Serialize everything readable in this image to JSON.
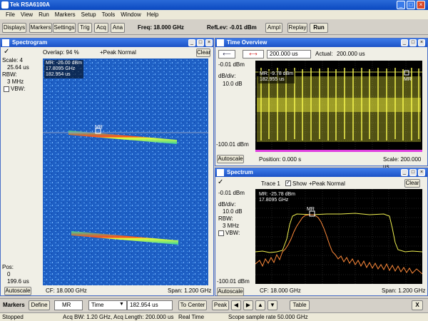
{
  "window_title": "Tek RSA6100A",
  "menu": [
    "File",
    "View",
    "Run",
    "Markers",
    "Setup",
    "Tools",
    "Window",
    "Help"
  ],
  "toolbar": {
    "buttons": [
      "Displays",
      "Markers",
      "Settings",
      "Trig",
      "Acq",
      "Ana"
    ],
    "freq": "Freq: 18.000 GHz",
    "reflev": "RefLev: -0.01 dBm",
    "ampl": "Ampl",
    "replay": "Replay",
    "run": "Run"
  },
  "spectrogram": {
    "title": "Spectrogram",
    "clear": "Clear",
    "overlap": "Overlap: 94 %",
    "trace": "+Peak Normal",
    "check": "✓",
    "scale_label": "Scale: 4",
    "scale_val": "25.64 us",
    "rbw_label": "RBW:",
    "rbw_val": "3 MHz",
    "vbw": "VBW:",
    "pos_label": "Pos:",
    "pos_val1": "0",
    "pos_val2": "199.6 us",
    "autoscale": "Autoscale",
    "cf": "CF: 18.000 GHz",
    "span": "Span: 1.200 GHz",
    "mr": [
      "MR: -26.00 dBm",
      "17.8095 GHz",
      "182.954 us"
    ],
    "marker": "MR"
  },
  "time_overview": {
    "title": "Time Overview",
    "time_val": "200.000 us",
    "actual": "Actual:",
    "actual_val": "200.000 us",
    "top": "-0.01 dBm",
    "div": "dB/div:",
    "div_val": "10.0 dB",
    "bottom": "-100.01 dBm",
    "autoscale": "Autoscale",
    "position": "Position: 0.000 s",
    "scale": "Scale: 200.000 us",
    "mr": [
      "MR: -9.78 dBm",
      "182.955 us"
    ],
    "marker": "MR"
  },
  "spectrum": {
    "title": "Spectrum",
    "check": "✓",
    "trace": "Trace 1",
    "show": "Show",
    "trace_mode": "+Peak Normal",
    "clear": "Clear",
    "top": "-0.01 dBm",
    "div": "dB/div:",
    "div_val": "10.0 dB",
    "rbw_label": "RBW:",
    "rbw_val": "3 MHz",
    "vbw": "VBW:",
    "bottom": "-100.01 dBm",
    "autoscale": "Autoscale",
    "cf": "CF: 18.000 GHz",
    "span": "Span: 1.200 GHz",
    "mr": [
      "MR: -25.78 dBm",
      "17.8095 GHz"
    ],
    "marker": "MR"
  },
  "markers_bar": {
    "label": "Markers",
    "define": "Define",
    "marker": "MR",
    "mode": "Time",
    "value": "182.954 us",
    "to_center": "To Center",
    "peak": "Peak",
    "table": "Table",
    "close": "X"
  },
  "status": {
    "state": "Stopped",
    "acq": "Acq BW: 1.20 GHz, Acq Length: 200.000 us",
    "rt": "Real Time",
    "rate": "Scope sample rate 50.000 GHz"
  }
}
